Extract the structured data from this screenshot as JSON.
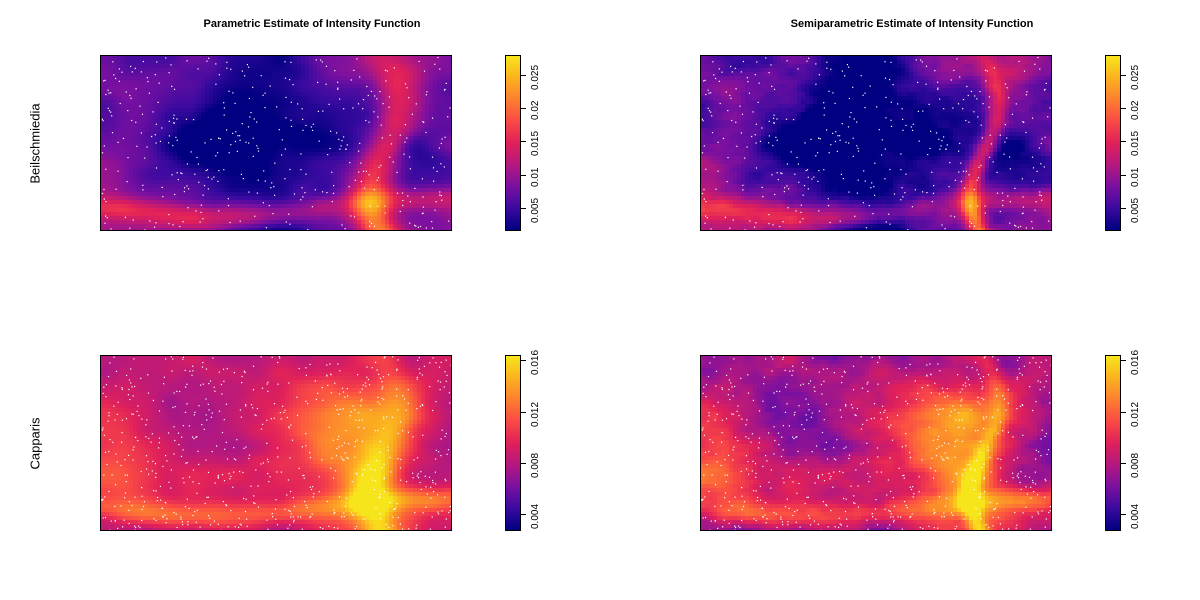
{
  "chart_data": {
    "type": "heatmap",
    "columns": [
      {
        "title": "Parametric Estimate of Intensity Function"
      },
      {
        "title": "Semiparametric Estimate of Intensity Function"
      }
    ],
    "rows": [
      {
        "label": "Beilschmiedia",
        "colorbar": {
          "range": [
            0.0015,
            0.028
          ],
          "ticks": [
            0.005,
            0.01,
            0.015,
            0.02,
            0.025
          ],
          "tick_labels": [
            "0.005",
            "0.01",
            "0.015",
            "0.02",
            "0.025"
          ]
        }
      },
      {
        "label": "Capparis",
        "colorbar": {
          "range": [
            0.0027,
            0.0164
          ],
          "ticks": [
            0.004,
            0.008,
            0.012,
            0.016
          ],
          "tick_labels": [
            "0.004",
            "0.008",
            "0.012",
            "0.016"
          ]
        }
      }
    ],
    "colormap": [
      "#000080",
      "#3a0aa0",
      "#7a10a0",
      "#b4187f",
      "#e0205a",
      "#fa4a45",
      "#fc7f2f",
      "#fbb21f",
      "#f7e51b"
    ],
    "grid": false,
    "points_color": "#ffffff"
  }
}
